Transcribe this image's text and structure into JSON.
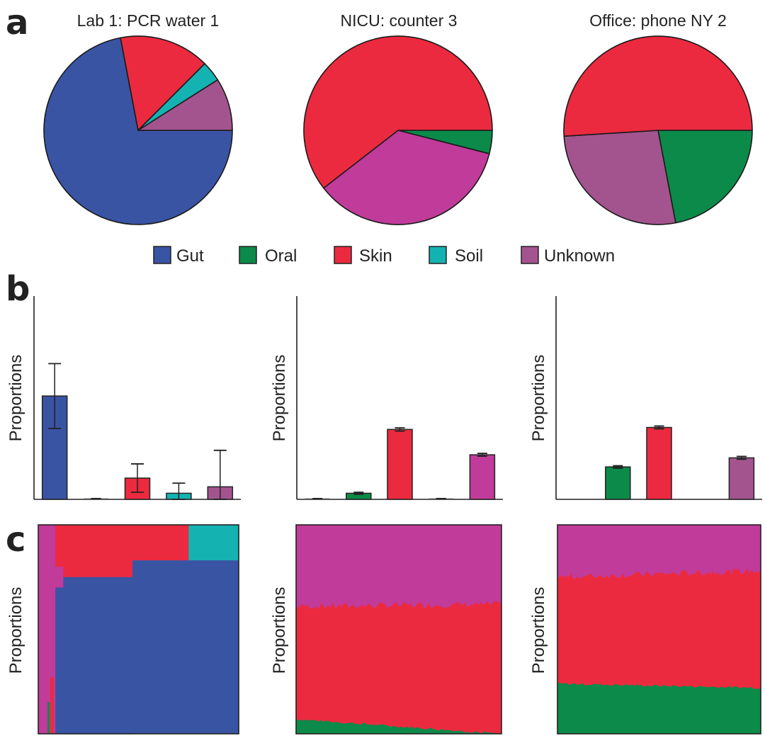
{
  "panels": {
    "a": "a",
    "b": "b",
    "c": "c"
  },
  "colors": {
    "Gut": "#3a54a4",
    "Oral": "#0b8a4a",
    "Skin": "#ec2a3f",
    "Soil": "#15b2b2",
    "Unknown": "#c03b9a",
    "Unknown_alt": "#a3548e"
  },
  "legend": [
    "Gut",
    "Oral",
    "Skin",
    "Soil",
    "Unknown"
  ],
  "chart_data": [
    {
      "panel": "a",
      "type": "pie",
      "title": "Lab 1: PCR water 1",
      "slices": [
        {
          "label": "Gut",
          "value": 0.72,
          "color": "#3a54a4"
        },
        {
          "label": "Skin",
          "value": 0.155,
          "color": "#ec2a3f"
        },
        {
          "label": "Soil",
          "value": 0.035,
          "color": "#15b2b2"
        },
        {
          "label": "Unknown",
          "value": 0.09,
          "color": "#a3548e"
        }
      ]
    },
    {
      "panel": "a",
      "type": "pie",
      "title": "NICU: counter 3",
      "slices": [
        {
          "label": "Oral",
          "value": 0.04,
          "color": "#0b8a4a"
        },
        {
          "label": "Unknown",
          "value": 0.355,
          "color": "#c03b9a"
        },
        {
          "label": "Skin",
          "value": 0.605,
          "color": "#ec2a3f"
        }
      ]
    },
    {
      "panel": "a",
      "type": "pie",
      "title": "Office: phone NY 2",
      "slices": [
        {
          "label": "Oral",
          "value": 0.22,
          "color": "#0b8a4a"
        },
        {
          "label": "Unknown",
          "value": 0.27,
          "color": "#a3548e"
        },
        {
          "label": "Skin",
          "value": 0.51,
          "color": "#ec2a3f"
        }
      ]
    },
    {
      "panel": "b",
      "type": "bar",
      "ylabel": "Proportions",
      "ylim": [
        0,
        1
      ],
      "categories": [
        "Gut",
        "Oral",
        "Skin",
        "Soil",
        "Unknown"
      ],
      "values": [
        0.51,
        0.003,
        0.105,
        0.03,
        0.062
      ],
      "errors": [
        0.16,
        0.001,
        0.07,
        0.05,
        0.18
      ],
      "colors": [
        "#3a54a4",
        "#0b8a4a",
        "#ec2a3f",
        "#15b2b2",
        "#a3548e"
      ]
    },
    {
      "panel": "b",
      "type": "bar",
      "ylabel": "Proportions",
      "ylim": [
        0,
        1
      ],
      "categories": [
        "Gut",
        "Oral",
        "Skin",
        "Soil",
        "Unknown"
      ],
      "values": [
        0.003,
        0.03,
        0.345,
        0.003,
        0.22
      ],
      "errors": [
        0.001,
        0.005,
        0.008,
        0.001,
        0.007
      ],
      "colors": [
        "#3a54a4",
        "#0b8a4a",
        "#ec2a3f",
        "#15b2b2",
        "#c03b9a"
      ]
    },
    {
      "panel": "b",
      "type": "bar",
      "ylabel": "Proportions",
      "ylim": [
        0,
        1
      ],
      "categories": [
        "Gut",
        "Oral",
        "Skin",
        "Soil",
        "Unknown"
      ],
      "values": [
        0,
        0.16,
        0.355,
        0,
        0.205
      ],
      "errors": [
        0,
        0.006,
        0.007,
        0,
        0.007
      ],
      "colors": [
        "#3a54a4",
        "#0b8a4a",
        "#ec2a3f",
        "#15b2b2",
        "#a3548e"
      ]
    },
    {
      "panel": "c",
      "type": "area",
      "ylabel": "Proportions",
      "series": [
        {
          "name": "Gut",
          "color": "#3a54a4"
        },
        {
          "name": "Skin",
          "color": "#ec2a3f"
        },
        {
          "name": "Soil",
          "color": "#15b2b2"
        },
        {
          "name": "Unknown",
          "color": "#c03b9a"
        },
        {
          "name": "Oral",
          "color": "#0b8a4a"
        }
      ],
      "segments": [
        {
          "x": [
            0.0,
            0.085
          ],
          "Unknown": 1.0
        },
        {
          "x": [
            0.085,
            0.125
          ],
          "Unknown": 0.1,
          "Skin": 0.2,
          "Gut": 0.7
        },
        {
          "x": [
            0.125,
            0.47
          ],
          "Skin": 0.25,
          "Gut": 0.75
        },
        {
          "x": [
            0.47,
            0.75
          ],
          "Skin": 0.17,
          "Gut": 0.83
        },
        {
          "x": [
            0.75,
            1.0
          ],
          "Soil": 0.17,
          "Gut": 0.83
        }
      ]
    },
    {
      "panel": "c",
      "type": "area",
      "ylabel": "Proportions",
      "series": [
        {
          "name": "Oral",
          "color": "#0b8a4a"
        },
        {
          "name": "Skin",
          "color": "#ec2a3f"
        },
        {
          "name": "Unknown",
          "color": "#c03b9a"
        }
      ],
      "oral_start": 0.07,
      "oral_end": 0.0,
      "skin_top_start": 0.61,
      "skin_top_end": 0.62
    },
    {
      "panel": "c",
      "type": "area",
      "ylabel": "Proportions",
      "series": [
        {
          "name": "Oral",
          "color": "#0b8a4a"
        },
        {
          "name": "Skin",
          "color": "#ec2a3f"
        },
        {
          "name": "Unknown",
          "color": "#c03b9a"
        }
      ],
      "oral_start": 0.24,
      "oral_end": 0.22,
      "skin_top_start": 0.75,
      "skin_top_end": 0.78
    }
  ]
}
